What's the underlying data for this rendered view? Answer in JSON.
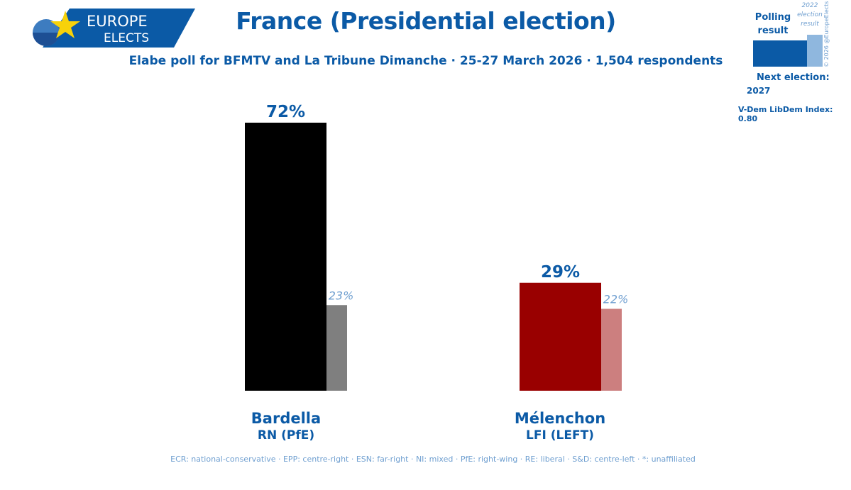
{
  "brand": {
    "line1": "EUROPE",
    "line2": "ELECTS"
  },
  "colors": {
    "accent": "#0b5aa6",
    "accent_light": "#6f9fd0"
  },
  "legend": {
    "polling": "Polling result",
    "previous": "2022 election result",
    "next_label": "Next election:",
    "next_year": "2027",
    "vdem": "V-Dem LibDem Index: 0.80",
    "copyright": "© 2026 @EuropeElects"
  },
  "footnote": "ECR: national-conservative · EPP: centre-right · ESN: far-right · NI: mixed · PfE: right-wing · RE: liberal · S&D: centre-left · *: unaffiliated",
  "chart_data": {
    "type": "bar",
    "title": "France (Presidential election)",
    "subtitle": "Elabe poll for BFMTV and La Tribune Dimanche · 25-27 March 2026 · 1,504 respondents",
    "categories": [
      "Bardella",
      "Mélenchon"
    ],
    "parties": [
      "RN (PfE)",
      "LFI (LEFT)"
    ],
    "series": [
      {
        "name": "Polling result",
        "values": [
          72,
          29
        ],
        "labels": [
          "72%",
          "29%"
        ],
        "colors": [
          "#000000",
          "#990000"
        ]
      },
      {
        "name": "2022 election result",
        "values": [
          23,
          22
        ],
        "labels": [
          "23%",
          "22%"
        ],
        "colors": [
          "#7f7f7f",
          "#cc7f7f"
        ]
      }
    ],
    "ylim": [
      0,
      72
    ],
    "grid": false,
    "legend_position": "top-right"
  }
}
